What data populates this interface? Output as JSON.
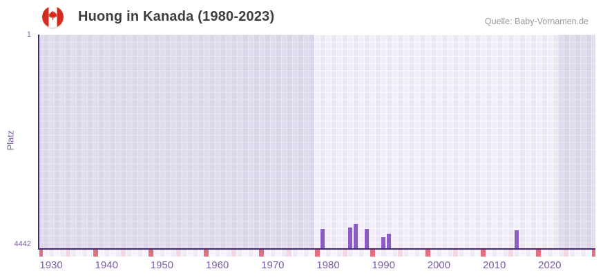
{
  "header": {
    "title": "Huong in Kanada (1980-2023)",
    "source": "Quelle: Baby-Vornamen.de",
    "flag_icon": "canada-flag-round"
  },
  "chart_data": {
    "type": "bar",
    "title": "Huong in Kanada (1980-2023)",
    "ylabel": "Platz",
    "xlabel": "",
    "grid": true,
    "y_axis": {
      "min": 1,
      "max": 4442,
      "inverted": true,
      "tick_labels": [
        "1",
        "4442"
      ]
    },
    "x_axis": {
      "start_year": 1928,
      "end_year": 2028,
      "tick_years": [
        1930,
        1940,
        1950,
        1960,
        1970,
        1980,
        1990,
        2000,
        2010,
        2020
      ]
    },
    "highlight_band_years": [
      1978,
      2021
    ],
    "bars": [
      {
        "year": 1979,
        "rank": 4020
      },
      {
        "year": 1984,
        "rank": 3985
      },
      {
        "year": 1985,
        "rank": 3910
      },
      {
        "year": 1987,
        "rank": 4010
      },
      {
        "year": 1990,
        "rank": 4185
      },
      {
        "year": 1991,
        "rank": 4120
      },
      {
        "year": 2014,
        "rank": 4035
      }
    ],
    "marker_years_dark": [
      1928,
      1938,
      1948,
      1958,
      1968,
      1978,
      1988,
      1998,
      2008,
      2018,
      2028
    ],
    "marker_years_light": [
      1933,
      1943,
      1953,
      1963,
      1973,
      1983,
      1993,
      2003,
      2013,
      2023
    ],
    "colors": {
      "bar": "#8b5cc7",
      "axis_line": "#452877",
      "axis_text": "#7c5ca6",
      "title_text": "#3e3e3e",
      "source_text": "#9a9a9a",
      "marker_dark": "#e26f7e",
      "marker_light": "#f3d7e3",
      "plot_col_a": "#f1eef8",
      "plot_col_b": "#eae6f3",
      "outside_band_shade": "rgba(90,70,150,0.10)"
    }
  }
}
